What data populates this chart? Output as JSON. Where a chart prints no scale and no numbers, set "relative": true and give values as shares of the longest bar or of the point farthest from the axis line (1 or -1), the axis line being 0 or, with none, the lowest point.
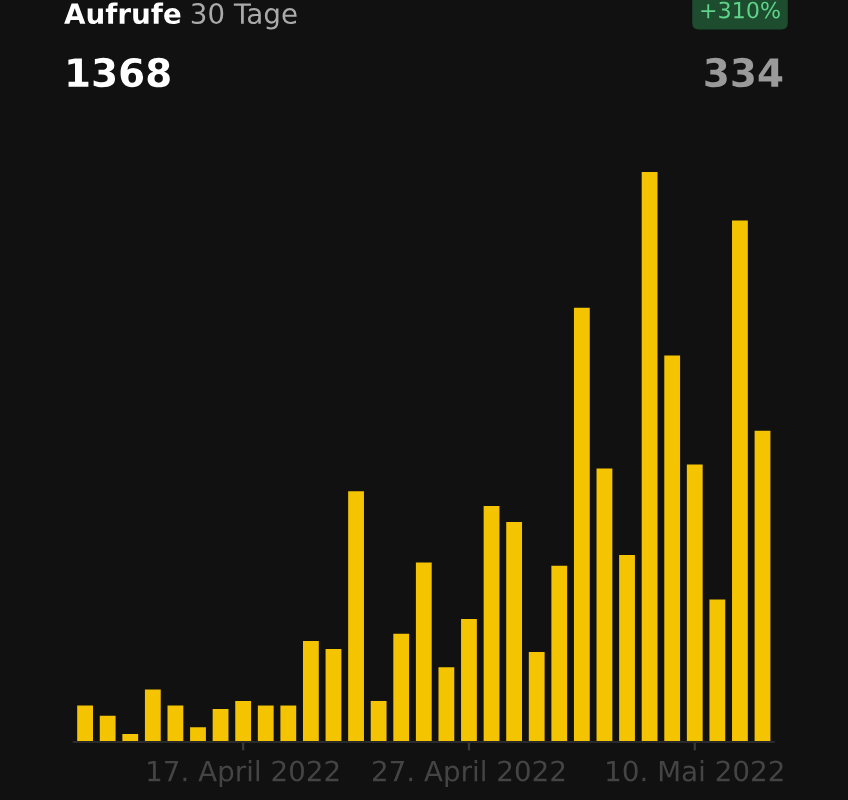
{
  "chart_data": {
    "type": "bar",
    "relative": true,
    "title": "Aufrufe",
    "subtitle": "30 Tage",
    "categories": [
      null,
      null,
      null,
      null,
      null,
      null,
      null,
      "17. April 2022",
      null,
      null,
      null,
      null,
      null,
      null,
      null,
      null,
      null,
      "27. April 2022",
      null,
      null,
      null,
      null,
      null,
      null,
      null,
      null,
      null,
      "10. Mai 2022",
      null,
      null,
      null
    ],
    "values": [
      0.064,
      0.046,
      0.014,
      0.092,
      0.064,
      0.026,
      0.058,
      0.072,
      0.064,
      0.064,
      0.177,
      0.163,
      0.44,
      0.072,
      0.19,
      0.315,
      0.131,
      0.216,
      0.414,
      0.386,
      0.158,
      0.309,
      0.762,
      0.48,
      0.328,
      1,
      0.678,
      0.487,
      0.25,
      0.915,
      0.546
    ],
    "color": "#f5c400",
    "annotations": [
      "1368",
      "334",
      "+310%"
    ],
    "grid": false
  }
}
